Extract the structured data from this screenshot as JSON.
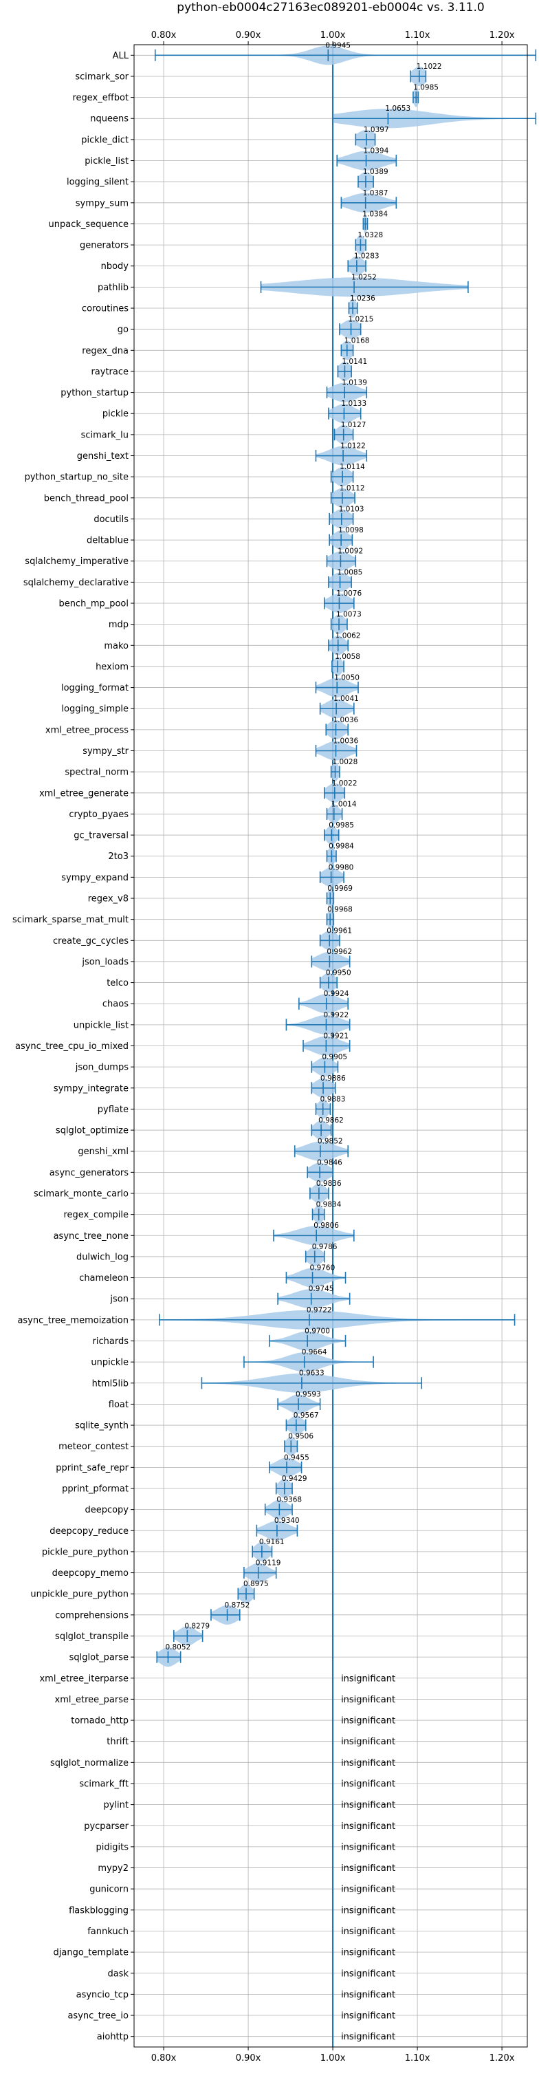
{
  "chart_data": {
    "type": "violin",
    "title": "python-eb0004c27163ec089201-eb0004c vs. 3.11.0",
    "xlim": [
      0.765,
      1.23
    ],
    "xticks": [
      "0.80x",
      "0.90x",
      "1.00x",
      "1.10x",
      "1.20x"
    ],
    "xtick_values": [
      0.8,
      0.9,
      1.0,
      1.1,
      1.2
    ],
    "reference_line": 1.0,
    "grid": true,
    "insignificant_label": "insignificant",
    "benchmarks": [
      {
        "name": "ALL",
        "mean": 0.9945,
        "min": 0.79,
        "max": 1.24,
        "spread": 0.02
      },
      {
        "name": "scimark_sor",
        "mean": 1.1022,
        "min": 1.092,
        "max": 1.11,
        "spread": 0.008
      },
      {
        "name": "regex_effbot",
        "mean": 1.0985,
        "min": 1.095,
        "max": 1.101,
        "spread": 0.003
      },
      {
        "name": "nqueens",
        "mean": 1.0653,
        "min": 1.0,
        "max": 1.24,
        "spread": 0.05
      },
      {
        "name": "pickle_dict",
        "mean": 1.0397,
        "min": 1.027,
        "max": 1.05,
        "spread": 0.011
      },
      {
        "name": "pickle_list",
        "mean": 1.0394,
        "min": 1.005,
        "max": 1.075,
        "spread": 0.02
      },
      {
        "name": "logging_silent",
        "mean": 1.0389,
        "min": 1.03,
        "max": 1.048,
        "spread": 0.008
      },
      {
        "name": "sympy_sum",
        "mean": 1.0387,
        "min": 1.01,
        "max": 1.075,
        "spread": 0.02
      },
      {
        "name": "unpack_sequence",
        "mean": 1.0384,
        "min": 1.036,
        "max": 1.041,
        "spread": 0.002
      },
      {
        "name": "generators",
        "mean": 1.0328,
        "min": 1.027,
        "max": 1.039,
        "spread": 0.005
      },
      {
        "name": "nbody",
        "mean": 1.0283,
        "min": 1.018,
        "max": 1.039,
        "spread": 0.008
      },
      {
        "name": "pathlib",
        "mean": 1.0252,
        "min": 0.915,
        "max": 1.16,
        "spread": 0.07
      },
      {
        "name": "coroutines",
        "mean": 1.0236,
        "min": 1.019,
        "max": 1.029,
        "spread": 0.004
      },
      {
        "name": "go",
        "mean": 1.0215,
        "min": 1.008,
        "max": 1.033,
        "spread": 0.01
      },
      {
        "name": "regex_dna",
        "mean": 1.0168,
        "min": 1.01,
        "max": 1.024,
        "spread": 0.006
      },
      {
        "name": "raytrace",
        "mean": 1.0141,
        "min": 1.006,
        "max": 1.022,
        "spread": 0.007
      },
      {
        "name": "python_startup",
        "mean": 1.0139,
        "min": 0.993,
        "max": 1.04,
        "spread": 0.015
      },
      {
        "name": "pickle",
        "mean": 1.0133,
        "min": 0.995,
        "max": 1.033,
        "spread": 0.012
      },
      {
        "name": "scimark_lu",
        "mean": 1.0127,
        "min": 1.002,
        "max": 1.024,
        "spread": 0.008
      },
      {
        "name": "genshi_text",
        "mean": 1.0122,
        "min": 0.98,
        "max": 1.04,
        "spread": 0.016
      },
      {
        "name": "python_startup_no_site",
        "mean": 1.0114,
        "min": 0.998,
        "max": 1.024,
        "spread": 0.009
      },
      {
        "name": "bench_thread_pool",
        "mean": 1.0112,
        "min": 0.998,
        "max": 1.026,
        "spread": 0.01
      },
      {
        "name": "docutils",
        "mean": 1.0103,
        "min": 0.996,
        "max": 1.024,
        "spread": 0.01
      },
      {
        "name": "deltablue",
        "mean": 1.0098,
        "min": 0.996,
        "max": 1.023,
        "spread": 0.009
      },
      {
        "name": "sqlalchemy_imperative",
        "mean": 1.0092,
        "min": 0.993,
        "max": 1.027,
        "spread": 0.012
      },
      {
        "name": "sqlalchemy_declarative",
        "mean": 1.0085,
        "min": 0.995,
        "max": 1.022,
        "spread": 0.01
      },
      {
        "name": "bench_mp_pool",
        "mean": 1.0076,
        "min": 0.99,
        "max": 1.025,
        "spread": 0.012
      },
      {
        "name": "mdp",
        "mean": 1.0073,
        "min": 0.998,
        "max": 1.017,
        "spread": 0.007
      },
      {
        "name": "mako",
        "mean": 1.0062,
        "min": 0.995,
        "max": 1.018,
        "spread": 0.008
      },
      {
        "name": "hexiom",
        "mean": 1.0058,
        "min": 0.999,
        "max": 1.013,
        "spread": 0.005
      },
      {
        "name": "logging_format",
        "mean": 1.005,
        "min": 0.98,
        "max": 1.03,
        "spread": 0.014
      },
      {
        "name": "logging_simple",
        "mean": 1.0041,
        "min": 0.985,
        "max": 1.025,
        "spread": 0.012
      },
      {
        "name": "xml_etree_process",
        "mean": 1.0036,
        "min": 0.992,
        "max": 1.018,
        "spread": 0.009
      },
      {
        "name": "sympy_str",
        "mean": 1.0036,
        "min": 0.98,
        "max": 1.028,
        "spread": 0.014
      },
      {
        "name": "spectral_norm",
        "mean": 1.0028,
        "min": 0.998,
        "max": 1.008,
        "spread": 0.004
      },
      {
        "name": "xml_etree_generate",
        "mean": 1.0022,
        "min": 0.99,
        "max": 1.014,
        "spread": 0.009
      },
      {
        "name": "crypto_pyaes",
        "mean": 1.0014,
        "min": 0.993,
        "max": 1.011,
        "spread": 0.006
      },
      {
        "name": "gc_traversal",
        "mean": 0.9985,
        "min": 0.99,
        "max": 1.007,
        "spread": 0.006
      },
      {
        "name": "2to3",
        "mean": 0.9984,
        "min": 0.993,
        "max": 1.004,
        "spread": 0.004
      },
      {
        "name": "sympy_expand",
        "mean": 0.998,
        "min": 0.985,
        "max": 1.013,
        "spread": 0.01
      },
      {
        "name": "regex_v8",
        "mean": 0.9969,
        "min": 0.993,
        "max": 1.001,
        "spread": 0.003
      },
      {
        "name": "scimark_sparse_mat_mult",
        "mean": 0.9968,
        "min": 0.993,
        "max": 1.001,
        "spread": 0.003
      },
      {
        "name": "create_gc_cycles",
        "mean": 0.9961,
        "min": 0.985,
        "max": 1.008,
        "spread": 0.009
      },
      {
        "name": "json_loads",
        "mean": 0.9962,
        "min": 0.975,
        "max": 1.02,
        "spread": 0.014
      },
      {
        "name": "telco",
        "mean": 0.995,
        "min": 0.985,
        "max": 1.005,
        "spread": 0.008
      },
      {
        "name": "chaos",
        "mean": 0.9924,
        "min": 0.96,
        "max": 1.018,
        "spread": 0.015
      },
      {
        "name": "unpickle_list",
        "mean": 0.9922,
        "min": 0.945,
        "max": 1.02,
        "spread": 0.018
      },
      {
        "name": "async_tree_cpu_io_mixed",
        "mean": 0.9921,
        "min": 0.965,
        "max": 1.02,
        "spread": 0.016
      },
      {
        "name": "json_dumps",
        "mean": 0.9905,
        "min": 0.975,
        "max": 1.006,
        "spread": 0.01
      },
      {
        "name": "sympy_integrate",
        "mean": 0.9886,
        "min": 0.975,
        "max": 1.003,
        "spread": 0.01
      },
      {
        "name": "pyflate",
        "mean": 0.9883,
        "min": 0.98,
        "max": 0.997,
        "spread": 0.006
      },
      {
        "name": "sqlglot_optimize",
        "mean": 0.9862,
        "min": 0.975,
        "max": 0.998,
        "spread": 0.008
      },
      {
        "name": "genshi_xml",
        "mean": 0.9852,
        "min": 0.955,
        "max": 1.018,
        "spread": 0.018
      },
      {
        "name": "async_generators",
        "mean": 0.9846,
        "min": 0.97,
        "max": 1.0,
        "spread": 0.011
      },
      {
        "name": "scimark_monte_carlo",
        "mean": 0.9836,
        "min": 0.973,
        "max": 0.995,
        "spread": 0.008
      },
      {
        "name": "regex_compile",
        "mean": 0.9834,
        "min": 0.976,
        "max": 0.99,
        "spread": 0.005
      },
      {
        "name": "async_tree_none",
        "mean": 0.9806,
        "min": 0.93,
        "max": 1.025,
        "spread": 0.022
      },
      {
        "name": "dulwich_log",
        "mean": 0.9786,
        "min": 0.968,
        "max": 0.99,
        "spread": 0.008
      },
      {
        "name": "chameleon",
        "mean": 0.976,
        "min": 0.945,
        "max": 1.015,
        "spread": 0.016
      },
      {
        "name": "json",
        "mean": 0.9745,
        "min": 0.935,
        "max": 1.02,
        "spread": 0.02
      },
      {
        "name": "async_tree_memoization",
        "mean": 0.9722,
        "min": 0.795,
        "max": 1.215,
        "spread": 0.055
      },
      {
        "name": "richards",
        "mean": 0.97,
        "min": 0.925,
        "max": 1.015,
        "spread": 0.018
      },
      {
        "name": "unpickle",
        "mean": 0.9664,
        "min": 0.895,
        "max": 1.048,
        "spread": 0.02
      },
      {
        "name": "html5lib",
        "mean": 0.9633,
        "min": 0.845,
        "max": 1.105,
        "spread": 0.04
      },
      {
        "name": "float",
        "mean": 0.9593,
        "min": 0.935,
        "max": 0.985,
        "spread": 0.012
      },
      {
        "name": "sqlite_synth",
        "mean": 0.9567,
        "min": 0.945,
        "max": 0.968,
        "spread": 0.008
      },
      {
        "name": "meteor_contest",
        "mean": 0.9506,
        "min": 0.943,
        "max": 0.958,
        "spread": 0.006
      },
      {
        "name": "pprint_safe_repr",
        "mean": 0.9455,
        "min": 0.925,
        "max": 0.963,
        "spread": 0.012
      },
      {
        "name": "pprint_pformat",
        "mean": 0.9429,
        "min": 0.933,
        "max": 0.952,
        "spread": 0.007
      },
      {
        "name": "deepcopy",
        "mean": 0.9368,
        "min": 0.92,
        "max": 0.952,
        "spread": 0.01
      },
      {
        "name": "deepcopy_reduce",
        "mean": 0.934,
        "min": 0.91,
        "max": 0.958,
        "spread": 0.014
      },
      {
        "name": "pickle_pure_python",
        "mean": 0.9161,
        "min": 0.905,
        "max": 0.928,
        "spread": 0.008
      },
      {
        "name": "deepcopy_memo",
        "mean": 0.9119,
        "min": 0.895,
        "max": 0.933,
        "spread": 0.011
      },
      {
        "name": "unpickle_pure_python",
        "mean": 0.8975,
        "min": 0.888,
        "max": 0.907,
        "spread": 0.007
      },
      {
        "name": "comprehensions",
        "mean": 0.8752,
        "min": 0.856,
        "max": 0.89,
        "spread": 0.012
      },
      {
        "name": "sqlglot_transpile",
        "mean": 0.8279,
        "min": 0.812,
        "max": 0.846,
        "spread": 0.01
      },
      {
        "name": "sqlglot_parse",
        "mean": 0.8052,
        "min": 0.792,
        "max": 0.82,
        "spread": 0.01
      },
      {
        "name": "xml_etree_iterparse",
        "insignificant": true
      },
      {
        "name": "xml_etree_parse",
        "insignificant": true
      },
      {
        "name": "tornado_http",
        "insignificant": true
      },
      {
        "name": "thrift",
        "insignificant": true
      },
      {
        "name": "sqlglot_normalize",
        "insignificant": true
      },
      {
        "name": "scimark_fft",
        "insignificant": true
      },
      {
        "name": "pylint",
        "insignificant": true
      },
      {
        "name": "pycparser",
        "insignificant": true
      },
      {
        "name": "pidigits",
        "insignificant": true
      },
      {
        "name": "mypy2",
        "insignificant": true
      },
      {
        "name": "gunicorn",
        "insignificant": true
      },
      {
        "name": "flaskblogging",
        "insignificant": true
      },
      {
        "name": "fannkuch",
        "insignificant": true
      },
      {
        "name": "django_template",
        "insignificant": true
      },
      {
        "name": "dask",
        "insignificant": true
      },
      {
        "name": "asyncio_tcp",
        "insignificant": true
      },
      {
        "name": "async_tree_io",
        "insignificant": true
      },
      {
        "name": "aiohttp",
        "insignificant": true
      }
    ],
    "colors": {
      "violin_fill": "#a9cbea",
      "line": "#1f77b4",
      "grid": "#b0b0b0",
      "text": "#000000"
    }
  }
}
